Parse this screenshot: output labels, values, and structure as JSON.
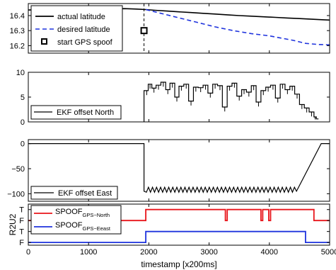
{
  "chart_data": [
    {
      "type": "line",
      "xlim": [
        0,
        5000
      ],
      "ylim": [
        16.15,
        16.48
      ],
      "yticks": [
        16.2,
        16.3,
        16.4
      ],
      "ytick_labels": [
        "16.2",
        "16.3",
        "16.4"
      ],
      "legend_position": "inside-left",
      "series": [
        {
          "name": "actual latitude",
          "color": "#000000",
          "style": "solid",
          "x": [
            0,
            200,
            400,
            600,
            800,
            1000,
            1200,
            1400,
            1600,
            1800,
            1950,
            2100,
            2300,
            2500,
            2700,
            2900,
            3100,
            3300,
            3500,
            3700,
            3900,
            4100,
            4300,
            4500,
            4700,
            4900,
            5000
          ],
          "y": [
            16.437,
            16.438,
            16.44,
            16.445,
            16.45,
            16.447,
            16.442,
            16.444,
            16.446,
            16.443,
            16.44,
            16.435,
            16.43,
            16.425,
            16.42,
            16.415,
            16.41,
            16.405,
            16.4,
            16.396,
            16.392,
            16.388,
            16.384,
            16.38,
            16.376,
            16.372,
            16.37
          ]
        },
        {
          "name": "desired latitude",
          "color": "#1f33dd",
          "style": "dashed",
          "x": [
            1950,
            2200,
            2500,
            2800,
            3100,
            3400,
            3700,
            4000,
            4200,
            4400,
            4500,
            4600,
            4800,
            5000
          ],
          "y": [
            16.44,
            16.415,
            16.385,
            16.355,
            16.325,
            16.3,
            16.28,
            16.265,
            16.25,
            16.235,
            16.225,
            16.215,
            16.208,
            16.205
          ]
        }
      ],
      "annotations": [
        {
          "name": "start GPS spoof",
          "marker": "square",
          "x": 1920,
          "y": 16.3
        }
      ],
      "vline_x": 1920
    },
    {
      "type": "line",
      "xlim": [
        0,
        5000
      ],
      "ylim": [
        0,
        10
      ],
      "yticks": [
        0,
        5,
        10
      ],
      "ytick_labels": [
        "0",
        "5",
        "10"
      ],
      "legend_position": "bottom-left",
      "series": [
        {
          "name": "EKF offset North",
          "color": "#000000",
          "style": "solid",
          "x": [
            1940,
            1990,
            2050,
            2120,
            2200,
            2280,
            2350,
            2430,
            2500,
            2580,
            2660,
            2740,
            2820,
            2900,
            2980,
            3060,
            3140,
            3220,
            3300,
            3380,
            3460,
            3540,
            3620,
            3700,
            3780,
            3860,
            3940,
            4020,
            4100,
            4180,
            4260,
            4340,
            4420,
            4500,
            4580,
            4660,
            4740,
            4780
          ],
          "y": [
            6.3,
            7.6,
            6.8,
            7.4,
            8.0,
            6.5,
            7.8,
            5.0,
            7.2,
            7.6,
            4.2,
            7.0,
            6.9,
            7.4,
            5.8,
            7.6,
            7.3,
            3.0,
            7.2,
            7.8,
            5.2,
            6.5,
            6.0,
            7.3,
            4.0,
            6.3,
            7.0,
            7.4,
            4.8,
            7.6,
            6.5,
            7.2,
            5.6,
            3.5,
            2.8,
            2.0,
            1.0,
            0.6
          ]
        }
      ],
      "step_start_x": 1920
    },
    {
      "type": "line",
      "xlim": [
        0,
        5000
      ],
      "ylim": [
        -115,
        8
      ],
      "yticks": [
        -100,
        -50,
        0
      ],
      "ytick_labels": [
        "−100",
        "−50",
        "0"
      ],
      "legend_position": "bottom-left",
      "series": [
        {
          "name": "EKF offset East",
          "color": "#000000",
          "style": "solid",
          "x": [
            0,
            1920,
            1920,
            4450,
            4860,
            5000
          ],
          "y": [
            0,
            0,
            -95,
            -95,
            0,
            0
          ]
        }
      ],
      "sawtooth": {
        "x_start": 1960,
        "x_end": 4450,
        "teeth": 37,
        "low": -97,
        "high": -87
      }
    },
    {
      "type": "line",
      "xlim": [
        0,
        5000
      ],
      "ylim": [
        -0.25,
        3.5
      ],
      "xticks": [
        0,
        1000,
        2000,
        3000,
        4000,
        5000
      ],
      "xtick_labels": [
        "0",
        "1000",
        "2000",
        "3000",
        "4000",
        "5000"
      ],
      "ytick_labels": [
        "F",
        "T",
        "F",
        "T"
      ],
      "ylabel": "R2U2",
      "xlabel": "timestamp [x200ms]",
      "legend_position": "top-left",
      "series": [
        {
          "name": "SPOOF",
          "name_subscript": "GPS−North",
          "color": "#e8141a",
          "style": "solid",
          "x": [
            0,
            1950,
            1950,
            3270,
            3270,
            3300,
            3300,
            3860,
            3860,
            3890,
            3890,
            3990,
            3990,
            4020,
            4020,
            4740,
            4740,
            5000
          ],
          "y": [
            2,
            2,
            3,
            3,
            2,
            2,
            3,
            3,
            2,
            2,
            3,
            3,
            2,
            2,
            3,
            3,
            2,
            2
          ]
        },
        {
          "name": "SPOOF",
          "name_subscript": "GPS−Eeast",
          "color": "#1f33dd",
          "style": "solid",
          "x": [
            0,
            1950,
            1950,
            4600,
            4600,
            5000
          ],
          "y": [
            0,
            0,
            1,
            1,
            0,
            0
          ]
        }
      ]
    }
  ]
}
